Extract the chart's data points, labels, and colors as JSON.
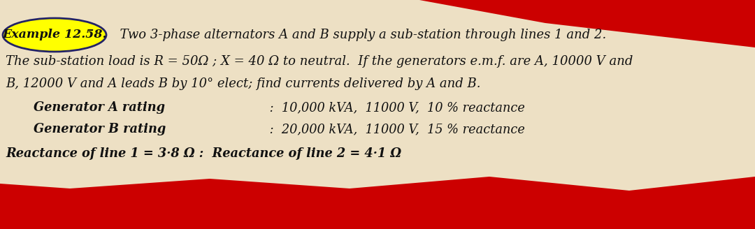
{
  "bg_color": "#ede0c4",
  "red_color": "#cc0000",
  "yellow_circle_color": "#ffff00",
  "circle_edge_color": "#222266",
  "example_label": "Example 12.58.",
  "line1_rest": "  Two 3-phase alternators A and B supply a sub-station through lines 1 and 2.",
  "line2": "The sub-station load is R = 50Ω ; X = 40 Ω to neutral.  If the generators e.m.f. are A, 10000 V and",
  "line3": "B, 12000 V and A leads B by 10° elect; find currents delivered by A and B.",
  "gen_a_label": "Generator A rating",
  "gen_a_value": " :  10,000 kVA,  11000 V,  10 % reactance",
  "gen_b_label": "Generator B rating",
  "gen_b_value": " :  20,000 kVA,  11000 V,  15 % reactance",
  "line_reactance": "Reactance of line 1 = 3·8 Ω :  Reactance of line 2 = 4·1 Ω",
  "font_size_main": 13.0,
  "font_size_sub": 12.8,
  "text_color": "#111111",
  "fig_width": 10.8,
  "fig_height": 3.28,
  "dpi": 100
}
